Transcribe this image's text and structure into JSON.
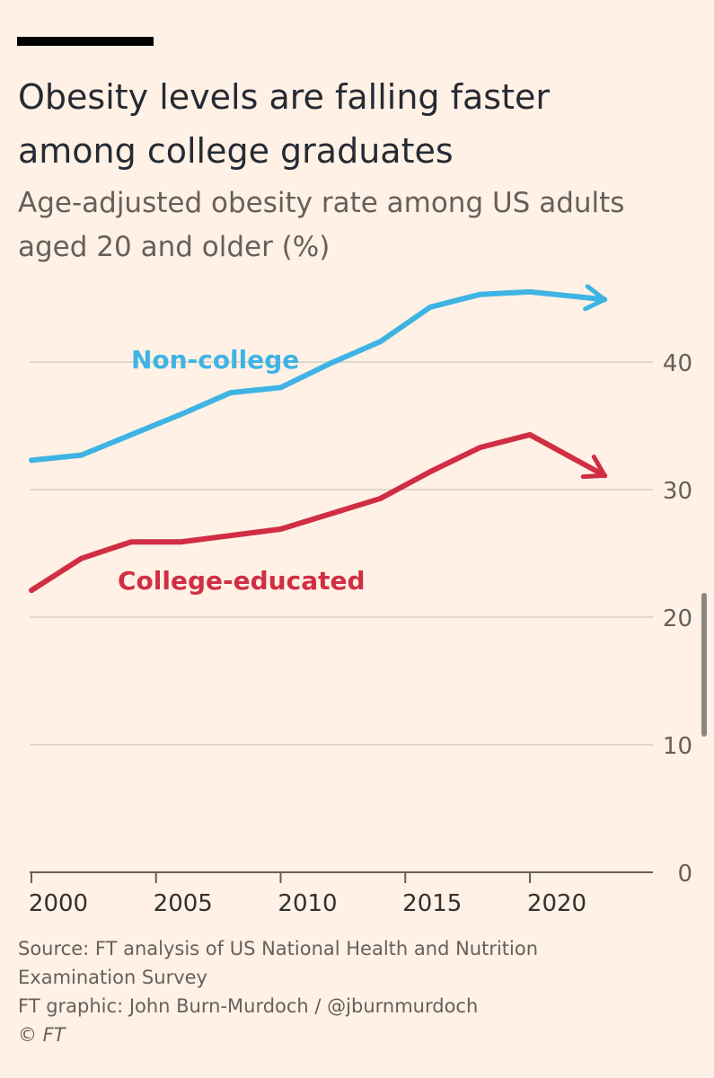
{
  "title_line1": "Obesity levels are falling faster",
  "title_line2": "among college graduates",
  "subtitle_line1": "Age-adjusted obesity rate among US adults",
  "subtitle_line2": "aged 20 and older (%)",
  "source_line1": "Source: FT analysis of US National Health and Nutrition",
  "source_line2": "Examination Survey",
  "credit": "FT graphic: John Burn-Murdoch / @jburnmurdoch",
  "copyright": "© FT",
  "chart_data": {
    "type": "line",
    "title": "Obesity levels are falling faster among college graduates",
    "subtitle": "Age-adjusted obesity rate among US adults aged 20 and older (%)",
    "xlabel": "",
    "ylabel": "",
    "x_ticks": [
      2000,
      2005,
      2010,
      2015,
      2020
    ],
    "y_ticks": [
      0,
      10,
      20,
      30,
      40
    ],
    "xlim": [
      2000,
      2025
    ],
    "ylim": [
      0,
      45
    ],
    "grid": true,
    "series": [
      {
        "name": "Non-college",
        "color": "#3FB4E4",
        "x": [
          2000,
          2002,
          2004,
          2006,
          2008,
          2010,
          2012,
          2014,
          2016,
          2018,
          2020,
          2023
        ],
        "values": [
          32.3,
          32.7,
          34.3,
          35.9,
          37.6,
          38.0,
          39.9,
          41.6,
          44.3,
          45.3,
          45.5,
          44.9
        ]
      },
      {
        "name": "College-educated",
        "color": "#D12E43",
        "x": [
          2000,
          2002,
          2004,
          2006,
          2008,
          2010,
          2012,
          2014,
          2016,
          2018,
          2020,
          2023
        ],
        "values": [
          22.1,
          24.6,
          25.9,
          25.9,
          26.4,
          26.9,
          28.1,
          29.3,
          31.4,
          33.3,
          34.3,
          31.1
        ]
      }
    ]
  }
}
